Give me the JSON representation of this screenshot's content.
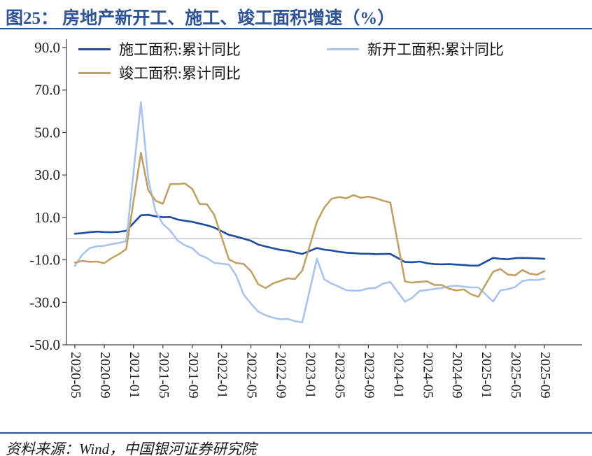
{
  "header": {
    "title": "图25： 房地产新开工、施工、竣工面积增速（%）"
  },
  "footer": {
    "source": "资料来源：Wind，中国银河证券研究院"
  },
  "colors": {
    "title_accent": "#2F5496",
    "divider": "#2F5496",
    "construction_line": "#1E4CA1",
    "new_starts_line": "#A8C3EC",
    "completion_line": "#C1A266",
    "zero_line": "#C7C7C7",
    "axis": "#404040"
  },
  "chart_data": {
    "type": "line",
    "title": "房地产新开工、施工、竣工面积增速（%）",
    "xlabel": "",
    "ylabel": "",
    "ylim": [
      -50,
      90
    ],
    "y_ticks": [
      90,
      70,
      50,
      30,
      10,
      -10,
      -30,
      -50
    ],
    "x_tick_every": 4,
    "x_tick_labels": [
      "2020-05",
      "2020-09",
      "2021-01",
      "2021-05",
      "2021-09",
      "2022-01",
      "2022-05",
      "2022-09",
      "2023-01",
      "2023-05",
      "2023-09",
      "2024-01",
      "2024-05",
      "2024-09",
      "2025-01",
      "2025-05",
      "2025-09"
    ],
    "grid": false,
    "zero_line": true,
    "legend_position": "top",
    "colors": {
      "zero": "#C7C7C7",
      "axis": "#404040"
    },
    "x": [
      "2020-05",
      "2020-06",
      "2020-07",
      "2020-08",
      "2020-09",
      "2020-10",
      "2020-11",
      "2020-12",
      "2021-01",
      "2021-02",
      "2021-03",
      "2021-04",
      "2021-05",
      "2021-06",
      "2021-07",
      "2021-08",
      "2021-09",
      "2021-10",
      "2021-11",
      "2021-12",
      "2022-01",
      "2022-02",
      "2022-03",
      "2022-04",
      "2022-05",
      "2022-06",
      "2022-07",
      "2022-08",
      "2022-09",
      "2022-10",
      "2022-11",
      "2022-12",
      "2023-01",
      "2023-02",
      "2023-03",
      "2023-04",
      "2023-05",
      "2023-06",
      "2023-07",
      "2023-08",
      "2023-09",
      "2023-10",
      "2023-11",
      "2023-12",
      "2024-01",
      "2024-02",
      "2024-03",
      "2024-04",
      "2024-05",
      "2024-06",
      "2024-07",
      "2024-08",
      "2024-09",
      "2024-10",
      "2024-11",
      "2024-12",
      "2025-01",
      "2025-02",
      "2025-03",
      "2025-04",
      "2025-05",
      "2025-06",
      "2025-07",
      "2025-08",
      "2025-09"
    ],
    "series": [
      {
        "name": "施工面积:累计同比",
        "color": "#1E4CA1",
        "values": [
          2.3,
          2.6,
          3.0,
          3.3,
          3.1,
          3.0,
          3.2,
          3.7,
          7.4,
          11.0,
          11.2,
          10.5,
          10.1,
          10.2,
          9.0,
          8.4,
          7.9,
          7.1,
          6.3,
          5.2,
          3.5,
          1.8,
          1.0,
          0.0,
          -1.0,
          -2.8,
          -3.7,
          -4.5,
          -5.3,
          -5.7,
          -6.5,
          -7.2,
          -5.8,
          -4.4,
          -5.2,
          -5.6,
          -6.2,
          -6.6,
          -6.8,
          -7.1,
          -7.1,
          -7.3,
          -7.2,
          -7.2,
          -9.1,
          -11.0,
          -11.1,
          -10.8,
          -11.6,
          -12.0,
          -12.1,
          -12.0,
          -12.2,
          -12.4,
          -12.7,
          -12.7,
          -10.9,
          -9.1,
          -9.5,
          -9.7,
          -9.2,
          -9.1,
          -9.2,
          -9.3,
          -9.5
        ]
      },
      {
        "name": "新开工面积:累计同比",
        "color": "#A8C3EC",
        "values": [
          -12.8,
          -7.6,
          -4.5,
          -3.6,
          -3.4,
          -2.6,
          -2.0,
          -1.2,
          31.5,
          64.3,
          28.2,
          12.8,
          6.9,
          3.8,
          -0.9,
          -3.2,
          -4.5,
          -7.7,
          -9.1,
          -11.4,
          -11.8,
          -12.2,
          -17.5,
          -26.3,
          -30.6,
          -34.4,
          -36.1,
          -37.2,
          -38.0,
          -37.8,
          -38.9,
          -39.4,
          -24.4,
          -9.4,
          -19.2,
          -21.2,
          -22.6,
          -24.3,
          -24.5,
          -24.4,
          -23.4,
          -23.2,
          -21.2,
          -20.4,
          -25.1,
          -29.7,
          -27.8,
          -24.6,
          -24.2,
          -23.7,
          -23.2,
          -22.5,
          -22.2,
          -22.6,
          -23.0,
          -23.0,
          -26.3,
          -29.6,
          -24.4,
          -23.8,
          -22.8,
          -20.0,
          -19.4,
          -19.5,
          -18.9
        ]
      },
      {
        "name": "竣工面积:累计同比",
        "color": "#C1A266",
        "values": [
          -11.3,
          -10.5,
          -10.9,
          -10.8,
          -11.6,
          -9.2,
          -7.3,
          -4.9,
          17.8,
          40.4,
          22.9,
          17.9,
          16.4,
          25.7,
          25.7,
          26.0,
          23.4,
          16.3,
          16.2,
          11.2,
          0.7,
          -9.8,
          -11.5,
          -11.9,
          -15.3,
          -21.5,
          -23.3,
          -21.1,
          -19.9,
          -18.7,
          -19.0,
          -15.0,
          -3.5,
          8.0,
          14.7,
          18.8,
          19.6,
          19.0,
          20.5,
          19.2,
          19.8,
          19.0,
          17.9,
          17.0,
          -1.6,
          -20.2,
          -20.7,
          -20.4,
          -20.1,
          -21.8,
          -21.8,
          -23.6,
          -24.4,
          -23.9,
          -26.2,
          -27.4,
          -21.5,
          -15.6,
          -14.3,
          -16.9,
          -17.3,
          -14.8,
          -16.5,
          -17.0,
          -15.3
        ]
      }
    ]
  }
}
